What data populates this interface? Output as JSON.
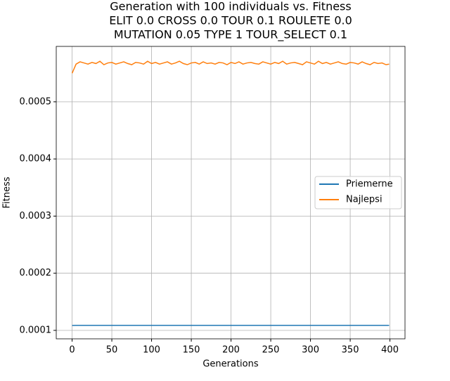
{
  "chart_data": {
    "type": "line",
    "title": [
      "Generation with 100 individuals vs. Fitness",
      "ELIT 0.0 CROSS 0.0 TOUR 0.1 ROULETE 0.0",
      "MUTATION 0.05 TYPE 1 TOUR_SELECT 0.1"
    ],
    "x_label": "Generations",
    "y_label": "Fitness",
    "x": [
      0,
      5,
      10,
      15,
      20,
      25,
      30,
      35,
      40,
      45,
      50,
      55,
      60,
      65,
      70,
      75,
      80,
      85,
      90,
      95,
      100,
      105,
      110,
      115,
      120,
      125,
      130,
      135,
      140,
      145,
      150,
      155,
      160,
      165,
      170,
      175,
      180,
      185,
      190,
      195,
      200,
      205,
      210,
      215,
      220,
      225,
      230,
      235,
      240,
      245,
      250,
      255,
      260,
      265,
      270,
      275,
      280,
      285,
      290,
      295,
      300,
      305,
      310,
      315,
      320,
      325,
      330,
      335,
      340,
      345,
      350,
      355,
      360,
      365,
      370,
      375,
      380,
      385,
      390,
      395,
      399
    ],
    "series": [
      {
        "name": "Priemerne",
        "color": "#1f77b4",
        "values": [
          0.0001085,
          0.0001088,
          0.0001088,
          0.0001088,
          0.0001088,
          0.0001088,
          0.0001088,
          0.0001088,
          0.0001088,
          0.0001088,
          0.0001088,
          0.0001088,
          0.0001088,
          0.0001088,
          0.0001088,
          0.0001088,
          0.0001088,
          0.0001088,
          0.0001088,
          0.0001088,
          0.0001088,
          0.0001088,
          0.0001088,
          0.0001088,
          0.0001088,
          0.0001088,
          0.0001088,
          0.0001088,
          0.0001088,
          0.0001088,
          0.0001088,
          0.0001088,
          0.0001088,
          0.0001088,
          0.0001088,
          0.0001088,
          0.0001088,
          0.0001088,
          0.0001088,
          0.0001088,
          0.0001088,
          0.0001088,
          0.0001088,
          0.0001088,
          0.0001088,
          0.0001088,
          0.0001088,
          0.0001088,
          0.0001088,
          0.0001088,
          0.0001088,
          0.0001088,
          0.0001088,
          0.0001088,
          0.0001088,
          0.0001088,
          0.0001088,
          0.0001088,
          0.0001088,
          0.0001088,
          0.0001088,
          0.0001088,
          0.0001088,
          0.0001088,
          0.0001088,
          0.0001088,
          0.0001088,
          0.0001088,
          0.0001088,
          0.0001088,
          0.0001088,
          0.0001088,
          0.0001088,
          0.0001088,
          0.0001088,
          0.0001088,
          0.0001088,
          0.0001088,
          0.0001088,
          0.0001088,
          0.0001088
        ]
      },
      {
        "name": "Najlepsi",
        "color": "#ff7f0e",
        "values": [
          0.00055,
          0.000566,
          0.00057,
          0.000568,
          0.000566,
          0.000569,
          0.000567,
          0.000571,
          0.000565,
          0.000568,
          0.000569,
          0.000566,
          0.000568,
          0.00057,
          0.000567,
          0.000565,
          0.000569,
          0.000568,
          0.000566,
          0.000571,
          0.000567,
          0.000569,
          0.000566,
          0.000568,
          0.00057,
          0.000566,
          0.000568,
          0.000571,
          0.000567,
          0.000565,
          0.000568,
          0.000569,
          0.000566,
          0.00057,
          0.000567,
          0.000568,
          0.000566,
          0.000569,
          0.000568,
          0.000565,
          0.000569,
          0.000567,
          0.00057,
          0.000566,
          0.000568,
          0.000569,
          0.000567,
          0.000566,
          0.00057,
          0.000568,
          0.000566,
          0.000569,
          0.000567,
          0.000571,
          0.000566,
          0.000568,
          0.000569,
          0.000567,
          0.000565,
          0.00057,
          0.000568,
          0.000566,
          0.000571,
          0.000567,
          0.000569,
          0.000566,
          0.000568,
          0.00057,
          0.000567,
          0.000566,
          0.000569,
          0.000568,
          0.000566,
          0.00057,
          0.000567,
          0.000565,
          0.000569,
          0.000567,
          0.000568,
          0.000565,
          0.000566
        ]
      }
    ],
    "xlim": [
      -19.95,
      418.95
    ],
    "xticks": [
      0,
      50,
      100,
      150,
      200,
      250,
      300,
      350,
      400
    ],
    "ylim": [
      8.52e-05,
      0.000597
    ],
    "yticks": [
      0.0001,
      0.0002,
      0.0003,
      0.0004,
      0.0005
    ],
    "grid": true,
    "legend": "center right"
  }
}
